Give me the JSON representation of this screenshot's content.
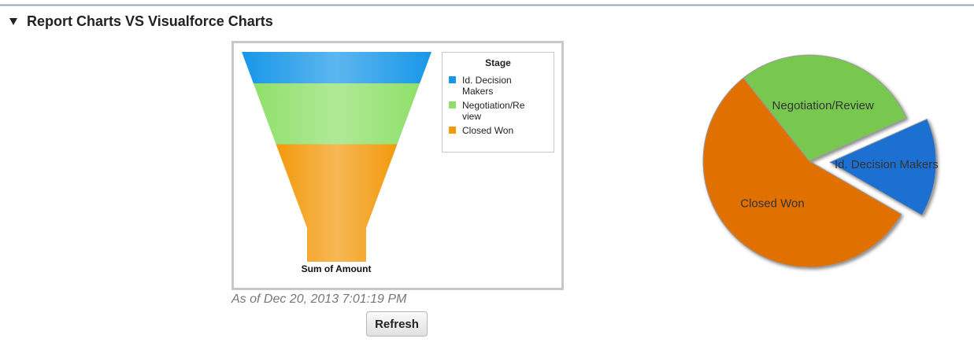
{
  "section_title": "Report Charts VS Visualforce Charts",
  "chart_data": [
    {
      "type": "funnel",
      "legend_title": "Stage",
      "axis_label": "Sum of Amount",
      "categories": [
        "Id. Decision Makers",
        "Negotiation/Review",
        "Closed Won"
      ],
      "values": [
        15,
        29,
        56
      ],
      "colors": [
        "#1797e8",
        "#8fe06a",
        "#f39a0c"
      ],
      "legend": "right"
    },
    {
      "type": "pie",
      "categories": [
        "Id. Decision Makers",
        "Negotiation/Review",
        "Closed Won"
      ],
      "values": [
        15,
        29,
        56
      ],
      "colors": [
        "#1a6fd1",
        "#78c850",
        "#e07000"
      ]
    }
  ],
  "as_of": "As of Dec 20, 2013 7:01:19 PM",
  "refresh": "Refresh"
}
